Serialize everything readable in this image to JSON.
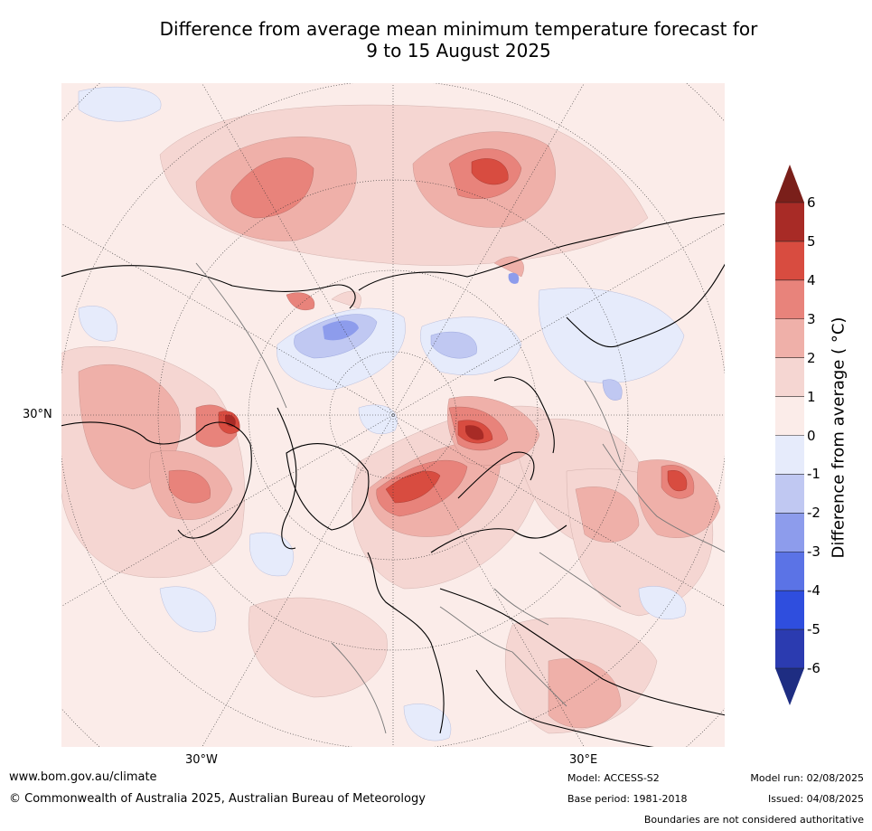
{
  "title_line1": "Difference from average mean minimum temperature forecast for",
  "title_line2": "9 to 15 August 2025",
  "map": {
    "projection": "north-polar-stereographic",
    "lat_label": "30°N",
    "lon_labels": [
      "30°W",
      "30°E"
    ]
  },
  "colorbar": {
    "label": "Difference from average ( °C)",
    "ticks": [
      "6",
      "5",
      "4",
      "3",
      "2",
      "1",
      "0",
      "-1",
      "-2",
      "-3",
      "-4",
      "-5",
      "-6"
    ],
    "extend": "both",
    "colors": {
      "above6": "#7a1f1a",
      "5to6": "#a82b26",
      "4to5": "#d84c40",
      "3to4": "#e8837b",
      "2to3": "#efb0a9",
      "1to2": "#f5d6d2",
      "0to1": "#fbece9",
      "m1to0": "#e6ebfb",
      "m2tom1": "#c0c8f2",
      "m3tom2": "#8d9cec",
      "m4tom3": "#5b73e6",
      "m5tom4": "#2f4ede",
      "m6tom5": "#2b3bb0",
      "below_m6": "#1e2d82"
    }
  },
  "footer": {
    "website": "www.bom.gov.au/climate",
    "copyright": "© Commonwealth of Australia 2025, Australian Bureau of Meteorology",
    "model": "Model: ACCESS-S2",
    "base_period": "Base period: 1981-2018",
    "model_run": "Model run: 02/08/2025",
    "issued": "Issued: 04/08/2025",
    "disclaimer": "Boundaries are not considered authoritative"
  }
}
